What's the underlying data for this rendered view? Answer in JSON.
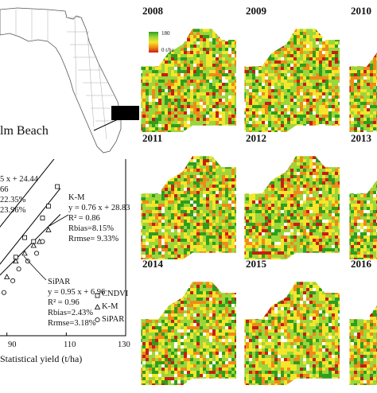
{
  "florida_map": {
    "county_label": "lm Beach"
  },
  "yield_panels": {
    "legend": {
      "max_label": "180",
      "min_label": "0 t/ha",
      "colors": [
        "#2e9e1f",
        "#9bd63a",
        "#f5e52b",
        "#f08a18",
        "#c81e12"
      ]
    },
    "years": [
      "2008",
      "2009",
      "2010",
      "2011",
      "2012",
      "2013",
      "2014",
      "2015",
      "2016"
    ]
  },
  "chart_data": {
    "type": "scatter",
    "xlabel": "Statistical yield (t/ha)",
    "x_ticks": [
      "90",
      "110",
      "130"
    ],
    "xlim": [
      85,
      130
    ],
    "ylim": [
      80,
      125
    ],
    "series": [
      {
        "name": "CNDVI",
        "marker": "square",
        "x": [
          93,
          96,
          99,
          102,
          104,
          107
        ],
        "y": [
          100,
          105,
          104,
          110,
          113,
          118
        ]
      },
      {
        "name": "K-M",
        "marker": "triangle",
        "x": [
          90,
          93,
          96,
          99,
          101,
          104
        ],
        "y": [
          95,
          99,
          101,
          103,
          104,
          107
        ]
      },
      {
        "name": "SiPAR",
        "marker": "circle",
        "x": [
          89,
          92,
          94,
          97,
          100,
          102
        ],
        "y": [
          91,
          94,
          97,
          99,
          101,
          104
        ]
      }
    ],
    "fits": [
      {
        "series": "CNDVI",
        "slope": 0.95,
        "intercept": 24.44
      },
      {
        "series": "K-M",
        "slope": 0.76,
        "intercept": 28.83
      },
      {
        "series": "SiPAR",
        "slope": 0.95,
        "intercept": 6.96
      }
    ],
    "annotations": {
      "cndvi_eq": "5 x + 24.44",
      "cndvi_r2": "66",
      "cndvi_rbias": "22.35%",
      "cndvi_rrmse": "23.96%",
      "km_title": "K-M",
      "km_eq": "y = 0.76 x + 28.83",
      "km_r2": "R² = 0.86",
      "km_rbias": "Rbias=8.15%",
      "km_rrmse": "Rrmse= 9.33%",
      "sipar_title": "SiPAR",
      "sipar_eq": "y = 0.95 x + 6.96",
      "sipar_r2": "R² = 0.96",
      "sipar_rbias": "Rbias=2.43%",
      "sipar_rrmse": "Rrmse=3.18%"
    },
    "legend": [
      "CNDVI",
      "K-M",
      "SiPAR"
    ]
  }
}
